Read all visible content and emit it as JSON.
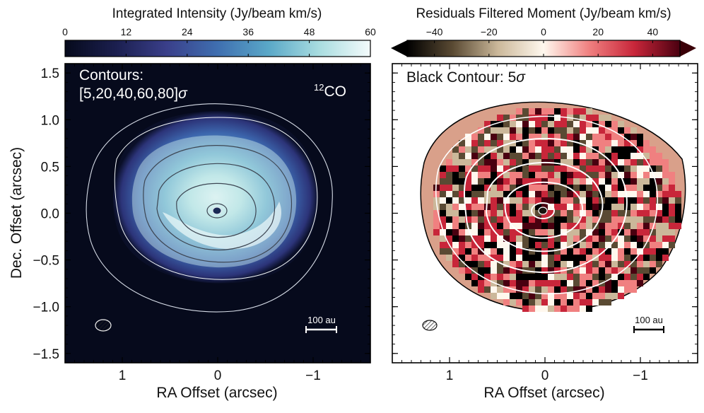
{
  "chart_data": [
    {
      "type": "heatmap",
      "panel": "left",
      "colorbar": {
        "title": "Integrated Intensity (Jy/beam km/s)",
        "ticks": [
          0,
          12,
          24,
          36,
          48,
          60
        ],
        "tick_labels": [
          "0",
          "12",
          "24",
          "36",
          "48",
          "60"
        ],
        "range": [
          0,
          60
        ],
        "colormap": [
          "#060a1c",
          "#1b1f4f",
          "#3a3f8a",
          "#3f6fb0",
          "#5aa8c8",
          "#a9dde0",
          "#f4fbfb"
        ]
      },
      "xlabel": "RA Offset (arcsec)",
      "ylabel": "Dec. Offset (arcsec)",
      "xlim": [
        1.6,
        -1.6
      ],
      "ylim": [
        -1.6,
        1.6
      ],
      "xticks": [
        1,
        0,
        -1
      ],
      "xtick_labels": [
        "1",
        "0",
        "−1"
      ],
      "yticks": [
        1.5,
        1.0,
        0.5,
        0.0,
        -0.5,
        -1.0,
        -1.5
      ],
      "ytick_labels": [
        "1.5",
        "1.0",
        "0.5",
        "0.0",
        "−0.5",
        "−1.0",
        "−1.5"
      ],
      "contour_levels_sigma": [
        5,
        20,
        40,
        60,
        80
      ],
      "annotation_title": "Contours:",
      "annotation_levels": "[5,20,40,60,80]",
      "annotation_sigma": "σ",
      "molecule_sup": "12",
      "molecule": "CO",
      "scale_bar": "100 au",
      "beam_center": [
        1.2,
        -1.2
      ]
    },
    {
      "type": "heatmap",
      "panel": "right",
      "colorbar": {
        "title": "Residuals Filtered Moment (Jy/beam km/s)",
        "ticks": [
          -40,
          -20,
          0,
          20,
          40
        ],
        "tick_labels": [
          "−40",
          "−20",
          "0",
          "20",
          "40"
        ],
        "range": [
          -50,
          50
        ],
        "extend": "both",
        "colormap": [
          "#000000",
          "#5a4a33",
          "#cbb89a",
          "#fff8ee",
          "#f08080",
          "#c8263a",
          "#4a0010"
        ]
      },
      "xlabel": "RA Offset (arcsec)",
      "xlim": [
        1.6,
        -1.6
      ],
      "ylim": [
        -1.6,
        1.6
      ],
      "xticks": [
        1,
        0,
        -1
      ],
      "xtick_labels": [
        "1",
        "0",
        "−1"
      ],
      "annotation_prefix": "Black Contour: 5",
      "annotation_sigma": "σ",
      "scale_bar": "100 au",
      "beam_center": [
        1.2,
        -1.2
      ]
    }
  ]
}
